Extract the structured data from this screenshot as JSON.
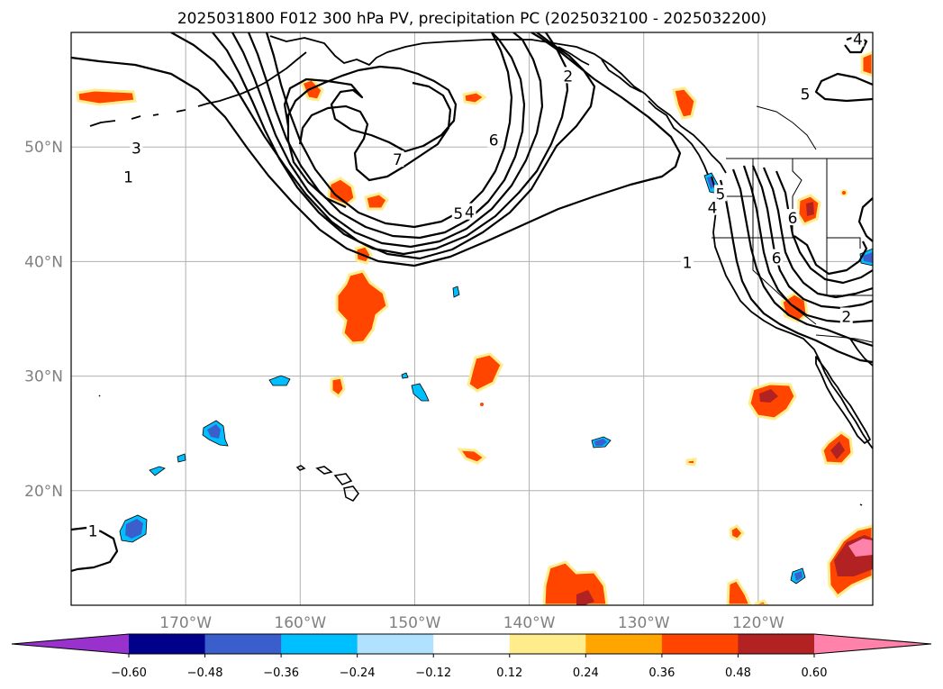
{
  "chart_data": {
    "type": "contour",
    "title": "2025031800 F012 300 hPa PV, precipitation PC (2025032100 - 2025032200)",
    "map": {
      "lon_range": [
        -180,
        -110
      ],
      "lat_range": [
        10,
        60
      ],
      "lon_ticks": [
        {
          "value": -170,
          "label": "170°W"
        },
        {
          "value": -160,
          "label": "160°W"
        },
        {
          "value": -150,
          "label": "150°W"
        },
        {
          "value": -140,
          "label": "140°W"
        },
        {
          "value": -130,
          "label": "130°W"
        },
        {
          "value": -120,
          "label": "120°W"
        }
      ],
      "lat_ticks": [
        {
          "value": 50,
          "label": "50°N"
        },
        {
          "value": 40,
          "label": "40°N"
        },
        {
          "value": 30,
          "label": "30°N"
        },
        {
          "value": 20,
          "label": "20°N"
        }
      ],
      "grid": true
    },
    "contour_labels": [
      {
        "text": "1",
        "lon": -178.1,
        "lat": 16.5
      },
      {
        "text": "1",
        "lon": -175.0,
        "lat": 47.4
      },
      {
        "text": "3",
        "lon": -174.3,
        "lat": 49.9
      },
      {
        "text": "7",
        "lon": -151.5,
        "lat": 48.9
      },
      {
        "text": "6",
        "lon": -143.1,
        "lat": 50.6
      },
      {
        "text": "5",
        "lon": -146.2,
        "lat": 44.2
      },
      {
        "text": "4",
        "lon": -145.2,
        "lat": 44.3
      },
      {
        "text": "2",
        "lon": -136.6,
        "lat": 56.2
      },
      {
        "text": "5",
        "lon": -115.9,
        "lat": 54.6
      },
      {
        "text": "4",
        "lon": -111.3,
        "lat": 59.4
      },
      {
        "text": "5",
        "lon": -123.3,
        "lat": 45.9
      },
      {
        "text": "4",
        "lon": -124.0,
        "lat": 44.7
      },
      {
        "text": "6",
        "lon": -117.0,
        "lat": 43.8
      },
      {
        "text": "1",
        "lon": -126.2,
        "lat": 39.9
      },
      {
        "text": "6",
        "lon": -118.4,
        "lat": 40.3
      },
      {
        "text": "2",
        "lon": -112.3,
        "lat": 35.2
      }
    ],
    "colorbar": {
      "extend": "both",
      "levels": [
        -0.6,
        -0.48,
        -0.36,
        -0.24,
        -0.12,
        0.12,
        0.24,
        0.36,
        0.48,
        0.6
      ],
      "tick_labels": [
        "−0.60",
        "−0.48",
        "−0.36",
        "−0.24",
        "−0.12",
        "0.12",
        "0.24",
        "0.36",
        "0.48",
        "0.60"
      ],
      "colors": [
        "#9932CC",
        "#00008B",
        "#3A5FCD",
        "#00BFFF",
        "#B0E2FF",
        "#FFFFFF",
        "#FFEC8B",
        "#FFA500",
        "#FF4500",
        "#B22222",
        "#FF82AB"
      ]
    }
  }
}
